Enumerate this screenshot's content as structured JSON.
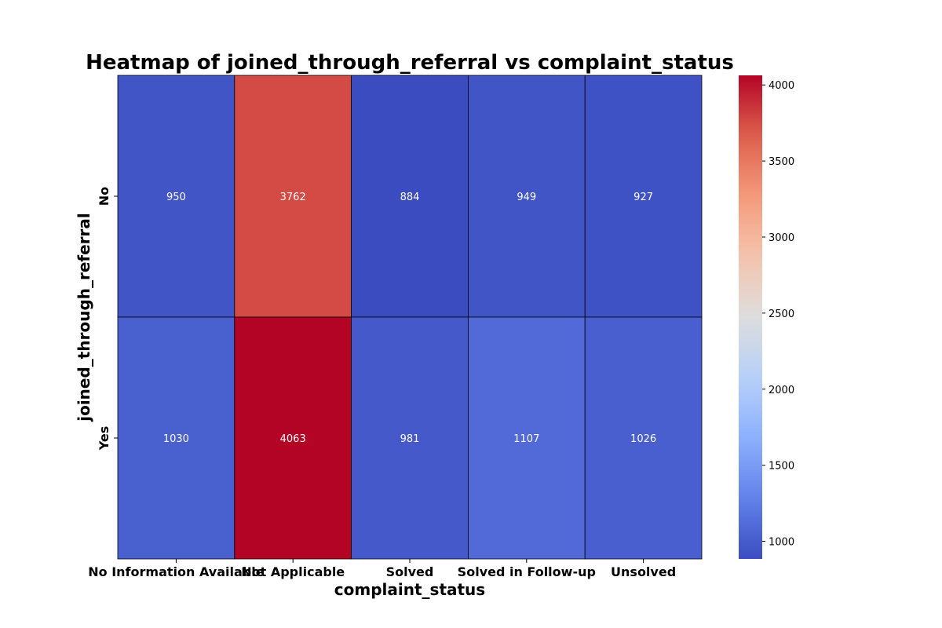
{
  "chart_data": {
    "type": "heatmap",
    "title": "Heatmap of joined_through_referral vs complaint_status",
    "xlabel": "complaint_status",
    "ylabel": "joined_through_referral",
    "x_categories": [
      "No Information Available",
      "Not Applicable",
      "Solved",
      "Solved in Follow-up",
      "Unsolved"
    ],
    "y_categories": [
      "No",
      "Yes"
    ],
    "values": [
      [
        950,
        3762,
        884,
        949,
        927
      ],
      [
        1030,
        4063,
        981,
        1107,
        1026
      ]
    ],
    "colormap": "coolwarm",
    "vmin": 884,
    "vmax": 4063,
    "colorbar_ticks": [
      1000,
      1500,
      2000,
      2500,
      3000,
      3500,
      4000
    ],
    "cell_edge_color": "#000000"
  }
}
